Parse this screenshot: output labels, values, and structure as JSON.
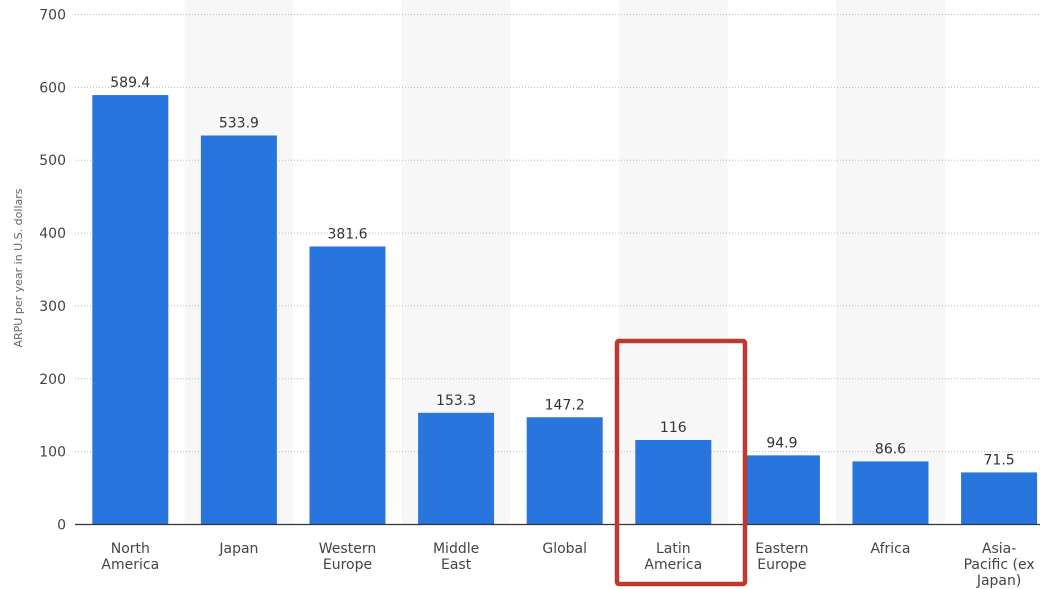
{
  "chart_data": {
    "type": "bar",
    "ylabel": "ARPU per year in U.S. dollars",
    "ylim": [
      0,
      700
    ],
    "yticks": [
      0,
      100,
      200,
      300,
      400,
      500,
      600,
      700
    ],
    "grid": true,
    "categories": [
      [
        "North",
        "America"
      ],
      [
        "Japan"
      ],
      [
        "Western",
        "Europe"
      ],
      [
        "Middle",
        "East"
      ],
      [
        "Global"
      ],
      [
        "Latin",
        "America"
      ],
      [
        "Eastern",
        "Europe"
      ],
      [
        "Africa"
      ],
      [
        "Asia-",
        "Pacific (ex",
        "Japan)"
      ]
    ],
    "values": [
      589.4,
      533.9,
      381.6,
      153.3,
      147.2,
      116,
      94.9,
      86.6,
      71.5
    ],
    "value_labels": [
      "589.4",
      "533.9",
      "381.6",
      "153.3",
      "147.2",
      "116",
      "94.9",
      "86.6",
      "71.5"
    ],
    "highlighted_category_index": 5,
    "colors": {
      "bar": "#2876dd",
      "highlight_box": "#c0392b",
      "band": "#f7f7f7",
      "grid": "#bbbbbb",
      "axis": "#333333"
    }
  }
}
